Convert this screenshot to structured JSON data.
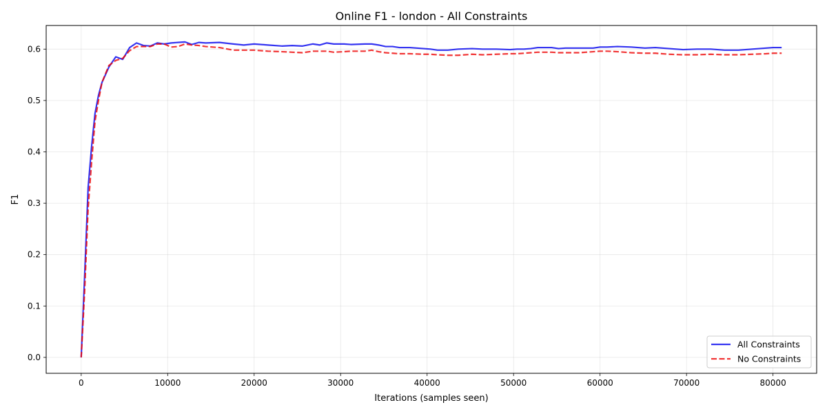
{
  "chart_data": {
    "type": "line",
    "title": "Online F1 - london - All Constraints",
    "xlabel": "Iterations (samples seen)",
    "ylabel": "F1",
    "xlim": [
      -4050,
      85050
    ],
    "ylim": [
      -0.031,
      0.646
    ],
    "xticks": [
      0,
      10000,
      20000,
      30000,
      40000,
      50000,
      60000,
      70000,
      80000
    ],
    "yticks": [
      0.0,
      0.1,
      0.2,
      0.3,
      0.4,
      0.5,
      0.6
    ],
    "xtick_labels": [
      "0",
      "10000",
      "20000",
      "30000",
      "40000",
      "50000",
      "60000",
      "70000",
      "80000"
    ],
    "ytick_labels": [
      "0.0",
      "0.1",
      "0.2",
      "0.3",
      "0.4",
      "0.5",
      "0.6"
    ],
    "grid": true,
    "legend_position": "bottom-right",
    "series": [
      {
        "name": "All Constraints",
        "color": "#0000ee",
        "style": "solid",
        "x": [
          0,
          400,
          800,
          1200,
          1600,
          2000,
          2400,
          3200,
          4000,
          4800,
          5600,
          6400,
          7200,
          8000,
          8800,
          9600,
          10400,
          11200,
          12000,
          12800,
          13600,
          14400,
          16000,
          17600,
          18800,
          20000,
          21600,
          23200,
          24400,
          25600,
          26800,
          27600,
          28400,
          29200,
          30400,
          31200,
          32800,
          33600,
          34400,
          35200,
          36000,
          36800,
          38000,
          39600,
          40400,
          41200,
          42400,
          43600,
          45200,
          46400,
          48000,
          49600,
          50400,
          51200,
          52000,
          52800,
          54400,
          55200,
          56000,
          57600,
          59200,
          60000,
          60800,
          62000,
          63600,
          65200,
          66400,
          68000,
          69600,
          71200,
          72800,
          74400,
          76000,
          77600,
          79200,
          80000,
          81000
        ],
        "y": [
          0.0,
          0.16,
          0.33,
          0.41,
          0.475,
          0.51,
          0.535,
          0.565,
          0.585,
          0.58,
          0.603,
          0.612,
          0.607,
          0.606,
          0.612,
          0.61,
          0.612,
          0.613,
          0.614,
          0.609,
          0.613,
          0.612,
          0.613,
          0.61,
          0.608,
          0.61,
          0.608,
          0.606,
          0.607,
          0.606,
          0.61,
          0.608,
          0.612,
          0.61,
          0.61,
          0.609,
          0.61,
          0.61,
          0.608,
          0.605,
          0.605,
          0.603,
          0.603,
          0.601,
          0.6,
          0.598,
          0.598,
          0.6,
          0.601,
          0.6,
          0.6,
          0.599,
          0.6,
          0.6,
          0.601,
          0.603,
          0.603,
          0.601,
          0.602,
          0.602,
          0.602,
          0.604,
          0.604,
          0.605,
          0.604,
          0.602,
          0.603,
          0.601,
          0.599,
          0.6,
          0.6,
          0.598,
          0.598,
          0.6,
          0.602,
          0.603,
          0.603
        ]
      },
      {
        "name": "No Constraints",
        "color": "#ee0000",
        "style": "dashed",
        "x": [
          0,
          400,
          800,
          1200,
          1600,
          2000,
          2400,
          3200,
          4000,
          4800,
          5600,
          6400,
          7200,
          8000,
          8800,
          9600,
          10400,
          11200,
          12000,
          12800,
          13600,
          14400,
          16000,
          17600,
          18800,
          20000,
          21600,
          23200,
          24400,
          25600,
          26800,
          27600,
          28400,
          29200,
          30400,
          31200,
          32800,
          33600,
          34400,
          35200,
          36000,
          36800,
          38000,
          39600,
          40400,
          41200,
          42400,
          43600,
          45200,
          46400,
          48000,
          49600,
          50400,
          51200,
          52000,
          52800,
          54400,
          55200,
          56000,
          57600,
          59200,
          60000,
          60800,
          62000,
          63600,
          65200,
          66400,
          68000,
          69600,
          71200,
          72800,
          74400,
          76000,
          77600,
          79200,
          80000,
          81000
        ],
        "y": [
          0.0,
          0.13,
          0.29,
          0.38,
          0.46,
          0.5,
          0.535,
          0.568,
          0.578,
          0.582,
          0.597,
          0.605,
          0.605,
          0.605,
          0.61,
          0.61,
          0.604,
          0.605,
          0.61,
          0.608,
          0.607,
          0.605,
          0.603,
          0.598,
          0.598,
          0.598,
          0.596,
          0.595,
          0.594,
          0.593,
          0.596,
          0.596,
          0.596,
          0.594,
          0.595,
          0.596,
          0.596,
          0.598,
          0.595,
          0.593,
          0.592,
          0.591,
          0.591,
          0.59,
          0.59,
          0.589,
          0.588,
          0.588,
          0.59,
          0.589,
          0.59,
          0.591,
          0.591,
          0.592,
          0.593,
          0.594,
          0.594,
          0.593,
          0.593,
          0.593,
          0.595,
          0.596,
          0.596,
          0.595,
          0.593,
          0.592,
          0.592,
          0.59,
          0.589,
          0.589,
          0.59,
          0.589,
          0.589,
          0.59,
          0.591,
          0.592,
          0.592
        ]
      }
    ]
  }
}
